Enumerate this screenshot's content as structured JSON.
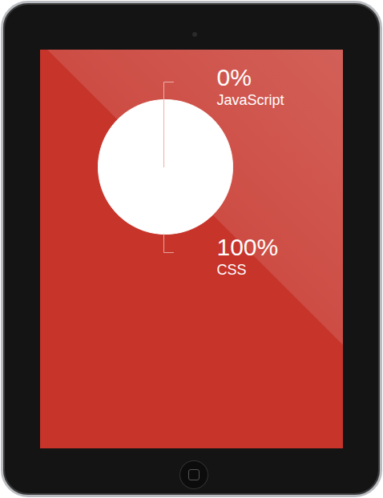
{
  "chart_data": {
    "type": "pie",
    "categories": [
      "JavaScript",
      "CSS"
    ],
    "values": [
      0,
      100
    ],
    "value_labels": [
      "0%",
      "100%"
    ],
    "colors": [
      "#ffffff",
      "#ffffff"
    ],
    "data_labels": true
  }
}
